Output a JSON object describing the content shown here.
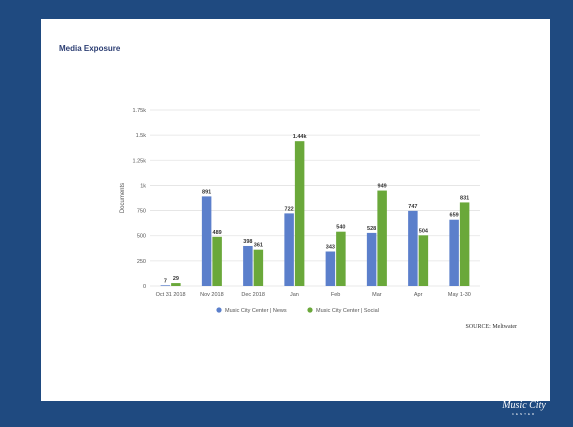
{
  "colors": {
    "background": "#1f4a80",
    "panel": "#ffffff",
    "news": "#5b7fcb",
    "social": "#6aa83a",
    "grid": "#e3e3e3",
    "text": "#444444"
  },
  "chart_data": {
    "type": "bar",
    "title": "Media Exposure",
    "xlabel": "",
    "ylabel": "Documents",
    "ylim": [
      0,
      1750
    ],
    "yticks": [
      "0",
      "250",
      "500",
      "750",
      "1k",
      "1.25k",
      "1.5k",
      "1.75k"
    ],
    "ytick_values": [
      0,
      250,
      500,
      750,
      1000,
      1250,
      1500,
      1750
    ],
    "categories": [
      "Oct 31 2018",
      "Nov 2018",
      "Dec 2018",
      "Jan",
      "Feb",
      "Mar",
      "Apr",
      "May 1-30"
    ],
    "series": [
      {
        "name": "Music City Center | News",
        "color": "#5b7fcb",
        "values": [
          7,
          891,
          398,
          722,
          343,
          528,
          747,
          659
        ],
        "labels": [
          "7",
          "891",
          "398",
          "722",
          "343",
          "528",
          "747",
          "659"
        ]
      },
      {
        "name": "Music City Center | Social",
        "color": "#6aa83a",
        "values": [
          29,
          489,
          361,
          1440,
          540,
          949,
          504,
          831
        ],
        "labels": [
          "29",
          "489",
          "361",
          "1.44k",
          "540",
          "949",
          "504",
          "831"
        ]
      }
    ],
    "grid": true,
    "legend": "bottom-center"
  },
  "source_note": "SOURCE: Meltwater",
  "logo": {
    "text": "Music City",
    "subtext": "CENTER"
  }
}
